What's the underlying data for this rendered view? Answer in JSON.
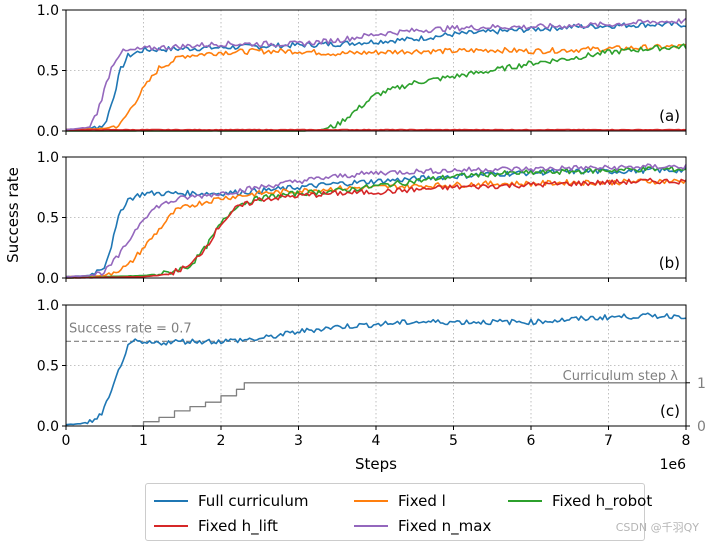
{
  "figure": {
    "ylabel": "Success rate",
    "xlabel": "Steps",
    "x_offset_label": "1e6",
    "watermark": "CSDN @千羽QY"
  },
  "legend": [
    {
      "label": "Full curriculum",
      "color": "#1f77b4"
    },
    {
      "label": "Fixed l",
      "color": "#ff7f0e"
    },
    {
      "label": "Fixed h_robot",
      "color": "#2ca02c"
    },
    {
      "label": "Fixed h_lift",
      "color": "#d62728"
    },
    {
      "label": "Fixed n_max",
      "color": "#9467bd"
    }
  ],
  "chart_data": [
    {
      "type": "line",
      "panel_label": "(a)",
      "xlim": [
        0,
        8
      ],
      "ylim": [
        0,
        1.0
      ],
      "yticks": [
        "0.0",
        "0.5",
        "1.0"
      ],
      "grid": true,
      "series": [
        {
          "name": "Full curriculum",
          "color": "#1f77b4",
          "x": [
            0,
            0.3,
            0.5,
            0.6,
            0.7,
            0.8,
            1.0,
            1.5,
            2.0,
            2.5,
            3.0,
            3.5,
            4.0,
            4.5,
            5.0,
            5.5,
            6.0,
            6.5,
            7.0,
            7.5,
            8.0
          ],
          "y": [
            0.01,
            0.02,
            0.05,
            0.25,
            0.5,
            0.62,
            0.67,
            0.68,
            0.69,
            0.7,
            0.71,
            0.72,
            0.74,
            0.76,
            0.8,
            0.82,
            0.84,
            0.86,
            0.87,
            0.88,
            0.88
          ]
        },
        {
          "name": "Fixed l",
          "color": "#ff7f0e",
          "x": [
            0,
            0.5,
            0.7,
            0.9,
            1.0,
            1.2,
            1.5,
            2.0,
            2.5,
            3.0,
            3.5,
            4.0,
            4.5,
            5.0,
            5.5,
            6.0,
            6.5,
            7.0,
            7.5,
            8.0
          ],
          "y": [
            0.01,
            0.02,
            0.05,
            0.25,
            0.35,
            0.52,
            0.62,
            0.65,
            0.66,
            0.66,
            0.64,
            0.65,
            0.66,
            0.66,
            0.67,
            0.66,
            0.67,
            0.68,
            0.69,
            0.7
          ]
        },
        {
          "name": "Fixed h_robot",
          "color": "#2ca02c",
          "x": [
            0,
            2.0,
            3.0,
            3.3,
            3.5,
            3.7,
            4.0,
            4.5,
            5.0,
            5.5,
            6.0,
            6.5,
            7.0,
            7.5,
            8.0
          ],
          "y": [
            0,
            0,
            0,
            0.01,
            0.05,
            0.15,
            0.3,
            0.4,
            0.45,
            0.5,
            0.56,
            0.6,
            0.65,
            0.68,
            0.7
          ]
        },
        {
          "name": "Fixed h_lift",
          "color": "#d62728",
          "x": [
            0,
            8.0
          ],
          "y": [
            0.01,
            0.01
          ]
        },
        {
          "name": "Fixed n_max",
          "color": "#9467bd",
          "x": [
            0,
            0.3,
            0.4,
            0.5,
            0.6,
            0.7,
            0.8,
            1.0,
            1.5,
            2.0,
            2.5,
            3.0,
            3.5,
            4.0,
            4.5,
            5.0,
            5.5,
            6.0,
            6.5,
            7.0,
            7.5,
            8.0
          ],
          "y": [
            0.01,
            0.03,
            0.15,
            0.35,
            0.55,
            0.65,
            0.66,
            0.68,
            0.7,
            0.72,
            0.72,
            0.72,
            0.75,
            0.8,
            0.83,
            0.85,
            0.86,
            0.86,
            0.87,
            0.88,
            0.9,
            0.91
          ]
        }
      ]
    },
    {
      "type": "line",
      "panel_label": "(b)",
      "xlim": [
        0,
        8
      ],
      "ylim": [
        0,
        1.0
      ],
      "yticks": [
        "0.0",
        "0.5",
        "1.0"
      ],
      "grid": true,
      "series": [
        {
          "name": "Full curriculum",
          "color": "#1f77b4",
          "x": [
            0,
            0.3,
            0.5,
            0.6,
            0.7,
            0.8,
            1.0,
            1.5,
            2.0,
            2.5,
            3.0,
            3.5,
            4.0,
            4.5,
            5.0,
            5.5,
            6.0,
            6.5,
            7.0,
            7.5,
            8.0
          ],
          "y": [
            0.01,
            0.02,
            0.1,
            0.3,
            0.55,
            0.65,
            0.7,
            0.7,
            0.7,
            0.72,
            0.75,
            0.78,
            0.8,
            0.82,
            0.84,
            0.86,
            0.87,
            0.88,
            0.88,
            0.89,
            0.89
          ]
        },
        {
          "name": "Fixed l",
          "color": "#ff7f0e",
          "x": [
            0,
            0.5,
            0.8,
            1.0,
            1.2,
            1.4,
            1.6,
            2.0,
            2.5,
            3.0,
            3.5,
            4.0,
            4.5,
            5.0,
            5.5,
            6.0,
            6.5,
            7.0,
            7.5,
            8.0
          ],
          "y": [
            0.01,
            0.02,
            0.1,
            0.25,
            0.4,
            0.55,
            0.6,
            0.66,
            0.7,
            0.72,
            0.74,
            0.75,
            0.76,
            0.77,
            0.78,
            0.78,
            0.79,
            0.79,
            0.8,
            0.8
          ]
        },
        {
          "name": "Fixed h_robot",
          "color": "#2ca02c",
          "x": [
            0,
            0.5,
            1.0,
            1.3,
            1.6,
            1.8,
            2.0,
            2.2,
            2.5,
            3.0,
            3.5,
            4.0,
            4.5,
            5.0,
            5.5,
            6.0,
            6.5,
            7.0,
            7.5,
            8.0
          ],
          "y": [
            0,
            0.01,
            0.02,
            0.04,
            0.1,
            0.25,
            0.45,
            0.6,
            0.66,
            0.7,
            0.72,
            0.76,
            0.8,
            0.84,
            0.86,
            0.87,
            0.88,
            0.89,
            0.9,
            0.9
          ]
        },
        {
          "name": "Fixed h_lift",
          "color": "#d62728",
          "x": [
            0,
            1.0,
            1.3,
            1.6,
            1.8,
            2.0,
            2.2,
            2.5,
            3.0,
            3.5,
            4.0,
            4.5,
            5.0,
            5.5,
            6.0,
            6.5,
            7.0,
            7.5,
            8.0
          ],
          "y": [
            0,
            0.01,
            0.03,
            0.1,
            0.25,
            0.45,
            0.58,
            0.65,
            0.68,
            0.7,
            0.71,
            0.73,
            0.75,
            0.76,
            0.77,
            0.78,
            0.79,
            0.8,
            0.8
          ]
        },
        {
          "name": "Fixed n_max",
          "color": "#9467bd",
          "x": [
            0,
            0.3,
            0.5,
            0.7,
            0.9,
            1.0,
            1.2,
            1.5,
            2.0,
            2.5,
            3.0,
            3.5,
            4.0,
            4.5,
            5.0,
            5.5,
            6.0,
            6.5,
            7.0,
            7.5,
            8.0
          ],
          "y": [
            0.01,
            0.02,
            0.05,
            0.2,
            0.4,
            0.5,
            0.6,
            0.66,
            0.7,
            0.75,
            0.8,
            0.84,
            0.87,
            0.88,
            0.89,
            0.9,
            0.9,
            0.91,
            0.91,
            0.92,
            0.92
          ]
        }
      ]
    },
    {
      "type": "line",
      "panel_label": "(c)",
      "xlim": [
        0,
        8
      ],
      "ylim": [
        0,
        1.0
      ],
      "yticks": [
        "0.0",
        "0.5",
        "1.0"
      ],
      "xticks": [
        "0",
        "1",
        "2",
        "3",
        "4",
        "5",
        "6",
        "7",
        "8"
      ],
      "grid": true,
      "threshold": {
        "value": 0.7,
        "label": "Success rate = 0.7",
        "color": "#7f7f7f"
      },
      "secondary_axis": {
        "label": "Curriculum step λ",
        "ticks": [
          "0",
          "1"
        ],
        "ylim": [
          0,
          2.8
        ]
      },
      "series": [
        {
          "name": "Full curriculum",
          "color": "#1f77b4",
          "x": [
            0,
            0.2,
            0.4,
            0.5,
            0.6,
            0.7,
            0.8,
            0.9,
            1.0,
            1.5,
            2.0,
            2.5,
            3.0,
            3.5,
            4.0,
            4.5,
            5.0,
            5.5,
            6.0,
            6.5,
            7.0,
            7.5,
            8.0
          ],
          "y": [
            0.01,
            0.02,
            0.05,
            0.15,
            0.3,
            0.5,
            0.65,
            0.7,
            0.68,
            0.7,
            0.7,
            0.72,
            0.78,
            0.82,
            0.84,
            0.86,
            0.86,
            0.86,
            0.86,
            0.88,
            0.9,
            0.91,
            0.91
          ]
        },
        {
          "name": "Curriculum step λ",
          "color": "#7f7f7f",
          "step": true,
          "x": [
            0.85,
            1.0,
            1.2,
            1.4,
            1.6,
            1.8,
            2.0,
            2.2,
            2.3,
            8.0
          ],
          "y": [
            0,
            0.1,
            0.2,
            0.35,
            0.45,
            0.55,
            0.7,
            0.85,
            1.0,
            1.0
          ]
        }
      ]
    }
  ]
}
